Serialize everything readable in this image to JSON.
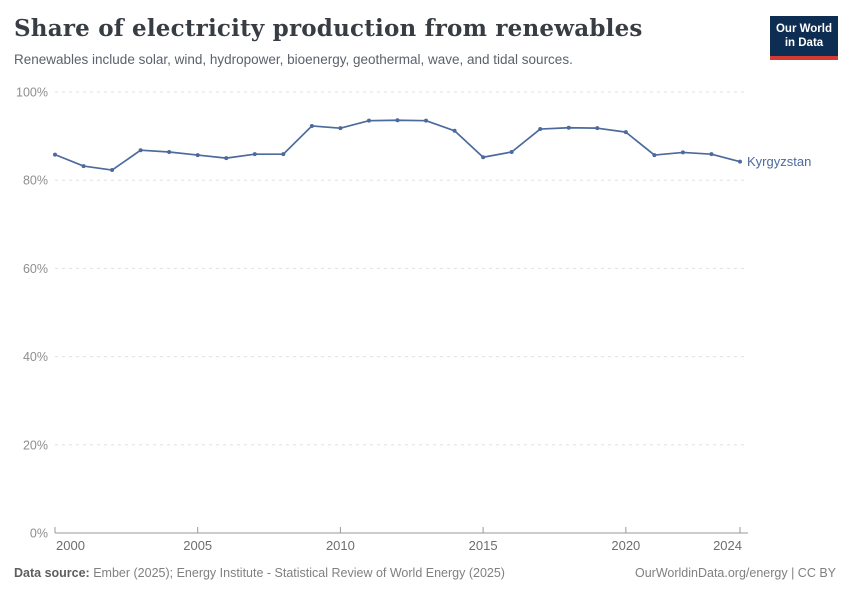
{
  "header": {
    "title": "Share of electricity production from renewables",
    "subtitle": "Renewables include solar, wind, hydropower, bioenergy, geothermal, wave, and tidal sources.",
    "logo": {
      "line1": "Our World",
      "line2": "in Data",
      "background_color": "#0d2d52",
      "bar_color": "#d23a32"
    }
  },
  "chart_data": {
    "type": "line",
    "title": "Share of electricity production from renewables",
    "subtitle": "Renewables include solar, wind, hydropower, bioenergy, geothermal, wave, and tidal sources.",
    "x": [
      2000,
      2001,
      2002,
      2003,
      2004,
      2005,
      2006,
      2007,
      2008,
      2009,
      2010,
      2011,
      2012,
      2013,
      2014,
      2015,
      2016,
      2017,
      2018,
      2019,
      2020,
      2021,
      2022,
      2023,
      2024
    ],
    "series": [
      {
        "name": "Kyrgyzstan",
        "color": "#4c6a9c",
        "values": [
          85.8,
          83.2,
          82.3,
          86.8,
          86.4,
          85.7,
          85.0,
          85.9,
          85.9,
          92.3,
          91.8,
          93.5,
          93.6,
          93.5,
          91.2,
          85.2,
          86.4,
          91.6,
          91.9,
          91.8,
          90.9,
          85.7,
          86.3,
          85.9,
          84.2
        ]
      }
    ],
    "xlabel": "",
    "ylabel": "",
    "ylim": [
      0,
      100
    ],
    "xlim": [
      2000,
      2024
    ],
    "yticks": [
      0,
      20,
      40,
      60,
      80,
      100
    ],
    "ytick_suffix": "%",
    "xticks": [
      2000,
      2005,
      2010,
      2015,
      2020,
      2024
    ],
    "grid": "horizontal-dashed",
    "legend_position": "end-of-line-label",
    "entity_label": "Kyrgyzstan",
    "colors": {
      "gridline": "#e0e0e0",
      "axis_line": "#999999",
      "y_tick_label": "#8e8e8e",
      "x_tick_label": "#6e6e6e"
    }
  },
  "footer": {
    "source_label": "Data source:",
    "source_text": " Ember (2025); Energy Institute - Statistical Review of World Energy (2025)",
    "right_text": "OurWorldinData.org/energy | CC BY"
  }
}
